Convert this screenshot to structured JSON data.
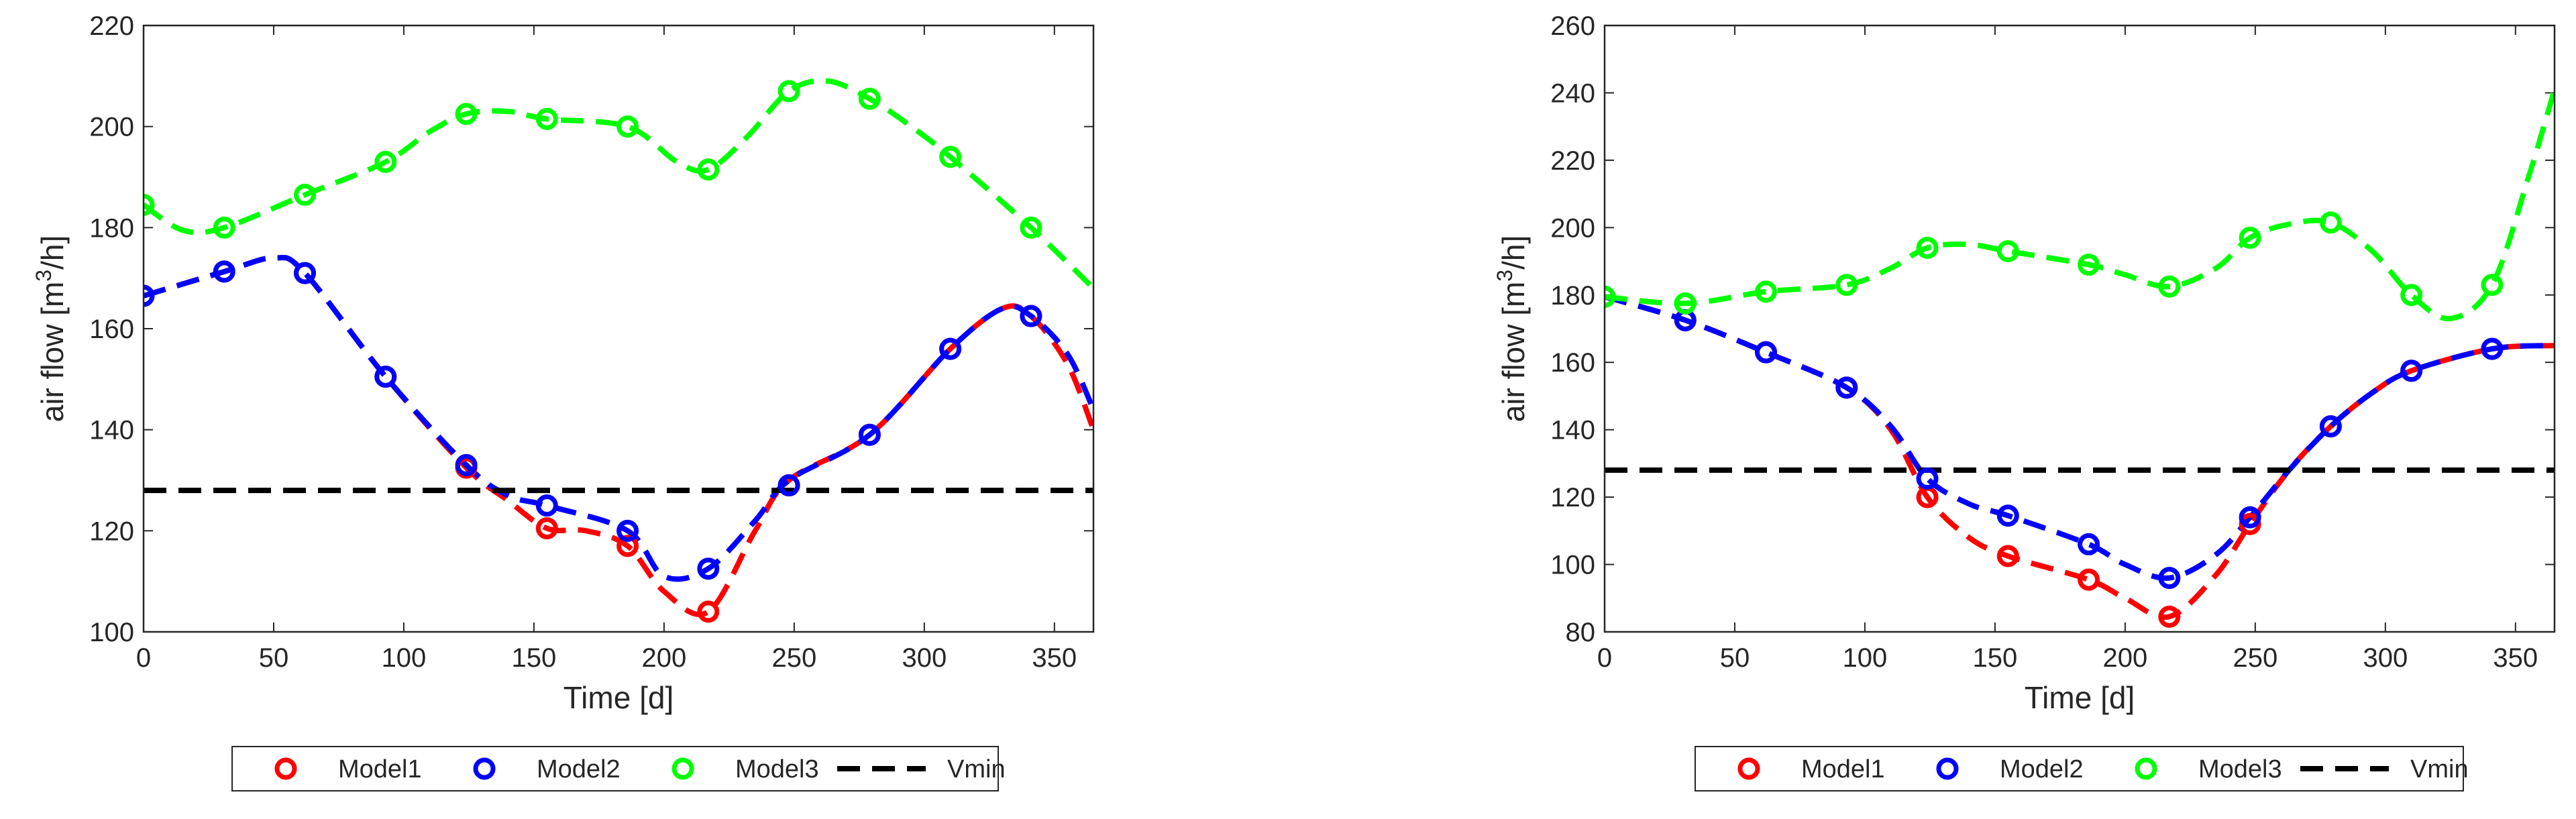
{
  "chart_data": [
    {
      "type": "line",
      "title": "",
      "xlabel": "Time [d]",
      "ylabel_main": "air flow [m",
      "ylabel_sup": "3",
      "ylabel_tail": "/h]",
      "xlim": [
        0,
        365
      ],
      "ylim": [
        100,
        220
      ],
      "xticks": [
        0,
        50,
        100,
        150,
        200,
        250,
        300,
        350
      ],
      "yticks": [
        100,
        120,
        140,
        160,
        180,
        200,
        220
      ],
      "series": [
        {
          "name": "Model1",
          "color": "#ff0000",
          "marker_x": [
            0,
            31,
            62,
            93,
            124,
            155,
            186,
            217,
            248,
            279,
            310,
            341
          ],
          "marker_y": [
            166.5,
            171.3,
            171,
            150.5,
            132.5,
            120.5,
            117,
            104,
            129,
            139,
            156,
            162.5
          ],
          "curve_x": [
            0,
            31,
            50,
            62,
            93,
            124,
            140,
            155,
            170,
            186,
            200,
            217,
            235,
            248,
            279,
            310,
            330,
            341,
            355,
            365
          ],
          "curve_y": [
            166.5,
            171.3,
            174,
            171,
            150.5,
            132.5,
            126,
            120.5,
            120,
            117,
            108,
            104,
            120,
            130,
            139,
            156,
            164,
            162.5,
            153,
            140
          ]
        },
        {
          "name": "Model2",
          "color": "#0000ff",
          "marker_x": [
            0,
            31,
            62,
            93,
            124,
            155,
            186,
            217,
            248,
            279,
            310,
            341
          ],
          "marker_y": [
            166.5,
            171.3,
            171,
            150.5,
            133,
            125,
            120,
            112.5,
            129,
            139,
            156,
            162.5
          ],
          "curve_x": [
            0,
            31,
            50,
            62,
            93,
            124,
            140,
            155,
            186,
            200,
            217,
            235,
            248,
            279,
            310,
            330,
            341,
            355,
            365
          ],
          "curve_y": [
            166.5,
            171.3,
            174,
            171,
            150.5,
            133,
            127,
            125,
            120,
            111,
            112.5,
            122,
            130,
            139,
            156,
            164,
            162.5,
            155,
            144
          ]
        },
        {
          "name": "Model3",
          "color": "#00ff00",
          "marker_x": [
            0,
            31,
            62,
            93,
            124,
            155,
            186,
            217,
            248,
            279,
            310,
            341
          ],
          "marker_y": [
            184.5,
            180,
            186.5,
            193,
            202.5,
            201.5,
            200,
            191.5,
            207,
            205.5,
            194,
            180
          ],
          "curve_x": [
            0,
            15,
            31,
            62,
            93,
            110,
            124,
            140,
            155,
            186,
            205,
            217,
            232,
            248,
            263,
            279,
            295,
            310,
            341,
            365
          ],
          "curve_y": [
            184.5,
            179.5,
            180,
            186.5,
            193,
            199,
            202.5,
            203,
            201.5,
            200,
            193,
            191.5,
            198,
            207,
            209,
            205.5,
            200,
            194,
            180,
            168
          ]
        }
      ],
      "reference_lines": [
        {
          "name": "Vmin",
          "y": 128,
          "color": "#000000"
        }
      ],
      "legend": [
        "Model1",
        "Model2",
        "Model3",
        "Vmin"
      ]
    },
    {
      "type": "line",
      "title": "",
      "xlabel": "Time [d]",
      "ylabel_main": "air flow [m",
      "ylabel_sup": "3",
      "ylabel_tail": "/h]",
      "xlim": [
        0,
        365
      ],
      "ylim": [
        80,
        260
      ],
      "xticks": [
        0,
        50,
        100,
        150,
        200,
        250,
        300,
        350
      ],
      "yticks": [
        80,
        100,
        120,
        140,
        160,
        180,
        200,
        220,
        240,
        260
      ],
      "series": [
        {
          "name": "Model1",
          "color": "#ff0000",
          "marker_x": [
            0,
            31,
            62,
            93,
            124,
            155,
            186,
            217,
            248,
            279,
            310,
            341
          ],
          "marker_y": [
            179.5,
            172.5,
            163,
            152.5,
            120,
            102.5,
            95.5,
            84.5,
            112,
            141,
            157.5,
            164
          ],
          "curve_x": [
            0,
            31,
            62,
            93,
            110,
            124,
            140,
            155,
            186,
            200,
            217,
            235,
            248,
            263,
            279,
            295,
            310,
            341,
            365
          ],
          "curve_y": [
            179.5,
            172.5,
            163,
            152.5,
            140,
            120,
            108,
            102.5,
            95.5,
            90,
            84.5,
            97,
            112,
            128,
            141,
            151,
            157.5,
            164,
            165
          ]
        },
        {
          "name": "Model2",
          "color": "#0000ff",
          "marker_x": [
            0,
            31,
            62,
            93,
            124,
            155,
            186,
            217,
            248,
            279,
            310,
            341
          ],
          "marker_y": [
            179.5,
            172.5,
            163,
            152.5,
            125.5,
            114.5,
            106,
            96,
            114,
            141,
            157.5,
            164
          ],
          "curve_x": [
            0,
            31,
            62,
            93,
            110,
            124,
            140,
            155,
            186,
            200,
            217,
            235,
            248,
            263,
            279,
            295,
            310,
            341,
            365
          ],
          "curve_y": [
            179.5,
            172.5,
            163,
            152.5,
            141,
            125.5,
            118,
            114.5,
            106,
            100,
            96,
            103,
            114,
            128,
            141,
            151,
            157.5,
            164,
            165
          ]
        },
        {
          "name": "Model3",
          "color": "#00ff00",
          "marker_x": [
            0,
            31,
            62,
            93,
            124,
            155,
            186,
            217,
            248,
            279,
            310,
            341
          ],
          "marker_y": [
            179.5,
            177.5,
            181,
            183,
            194,
            193,
            189,
            182.5,
            197,
            201.5,
            180,
            183
          ],
          "curve_x": [
            0,
            31,
            62,
            93,
            110,
            124,
            140,
            155,
            186,
            200,
            217,
            235,
            248,
            263,
            279,
            295,
            310,
            325,
            341,
            355,
            365
          ],
          "curve_y": [
            179.5,
            177.5,
            181,
            183,
            188,
            194,
            195,
            193,
            189,
            186,
            182.5,
            188,
            197,
            201,
            201.5,
            193,
            180,
            173,
            183,
            215,
            241
          ]
        }
      ],
      "reference_lines": [
        {
          "name": "Vmin",
          "y": 128,
          "color": "#000000"
        }
      ],
      "legend": [
        "Model1",
        "Model2",
        "Model3",
        "Vmin"
      ]
    }
  ]
}
